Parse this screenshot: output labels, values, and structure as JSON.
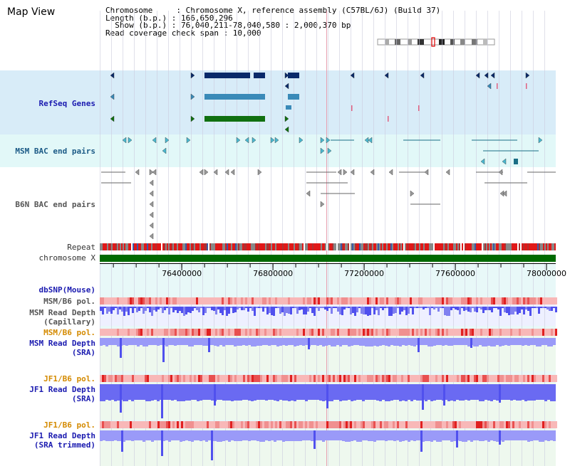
{
  "page": {
    "title": "Map View",
    "info_lines": [
      "Chromosome     : Chromosome X, reference assembly (C57BL/6J) (Build 37)",
      "Length (b.p.) : 166,650,296",
      "  Show (b.p.) : 76,040,211-78,040,580 : 2,000,370 bp",
      "Read coverage check span : 10,000"
    ]
  },
  "tracks": {
    "refseq": "RefSeq Genes",
    "msm_bac": "MSM BAC end pairs",
    "b6n_bac": "B6N BAC end pairs",
    "repeat": "Repeat",
    "chromosome": "chromosome X",
    "dbsnp": "dbSNP(Mouse)",
    "msm_b6_pol_1": "MSM/B6 pol.",
    "msm_depth_cap_1": "MSM Read Depth",
    "msm_depth_cap_2": "(Capillary)",
    "msm_b6_pol_2": "MSM/B6 pol.",
    "msm_depth_sra_1": "MSM Read Depth",
    "msm_depth_sra_2": "(SRA)",
    "jf1_b6_pol_1": "JF1/B6 pol.",
    "jf1_depth_sra_1": "JF1 Read Depth",
    "jf1_depth_sra_2": "(SRA)",
    "jf1_b6_pol_2": "JF1/B6 pol.",
    "jf1_depth_trim_1": "JF1 Read Depth",
    "jf1_depth_trim_2": "(SRA trimmed)"
  },
  "ruler": {
    "start": 76040211,
    "end": 78040580,
    "ticks": [
      {
        "pos": 76400000,
        "label": "76400000"
      },
      {
        "pos": 76800000,
        "label": "76800000"
      },
      {
        "pos": 77200000,
        "label": "77200000"
      },
      {
        "pos": 77600000,
        "label": "77600000"
      },
      {
        "pos": 78000000,
        "label": "78000000"
      }
    ]
  },
  "colors": {
    "gene_dark": "#0a2a6a",
    "gene_mid": "#3a8ab8",
    "gene_green": "#107010",
    "refseq_bg": "#d8ecf8",
    "bac_bg": "#e2f8f8",
    "bac_teal": "#1b6e86",
    "chrom_green": "#006a00",
    "depth_blue": "#5050ee",
    "depth_light": "#9a9af8",
    "pol_pink": "#f8b8b8",
    "pol_red": "#e02020"
  }
}
